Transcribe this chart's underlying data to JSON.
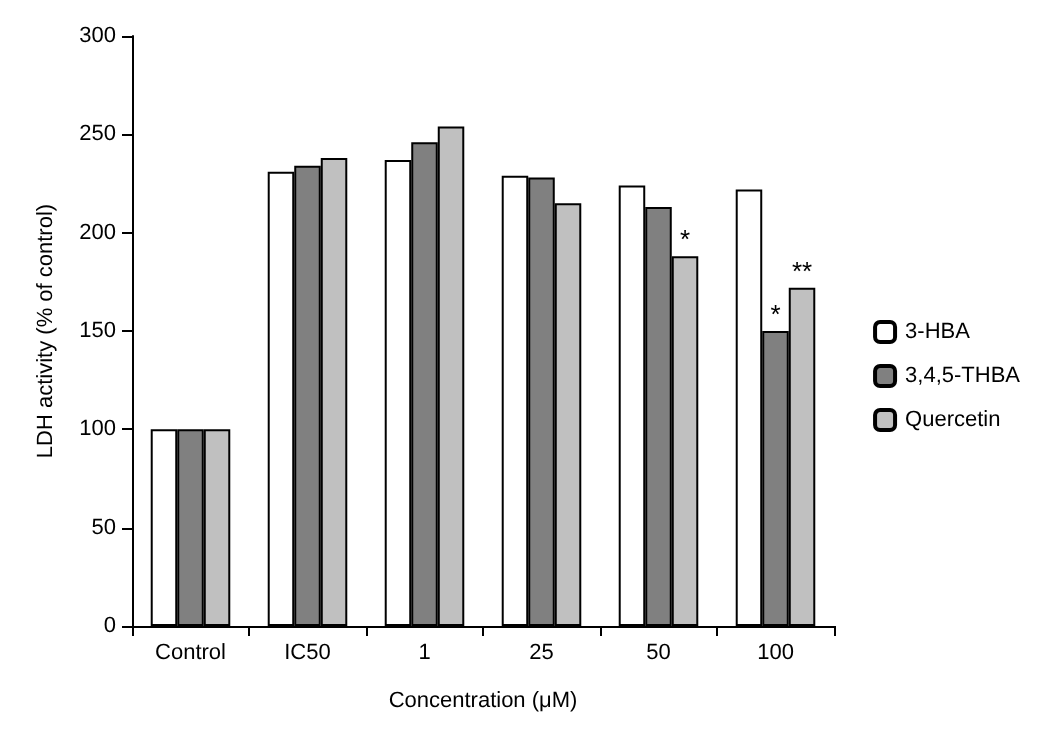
{
  "chart_data": {
    "type": "bar",
    "xlabel": "Concentration (μM)",
    "ylabel": "LDH activity (% of control)",
    "categories": [
      "Control",
      "IC50",
      "1",
      "25",
      "50",
      "100"
    ],
    "series": [
      {
        "name": "3-HBA",
        "color": "#ffffff",
        "values": [
          100,
          231,
          237,
          229,
          224,
          222
        ]
      },
      {
        "name": "3,4,5-THBA",
        "color": "#808080",
        "values": [
          100,
          234,
          246,
          228,
          213,
          150
        ],
        "value_labels": [
          null,
          null,
          null,
          null,
          null,
          "*"
        ]
      },
      {
        "name": "Quercetin",
        "color": "#c0c0c0",
        "values": [
          100,
          238,
          254,
          215,
          188,
          172
        ],
        "value_labels": [
          null,
          null,
          null,
          null,
          "*",
          "**"
        ]
      }
    ],
    "ylim": [
      0,
      300
    ],
    "yticks": [
      0,
      50,
      100,
      150,
      200,
      250,
      300
    ],
    "grid": false,
    "legend": "right"
  }
}
